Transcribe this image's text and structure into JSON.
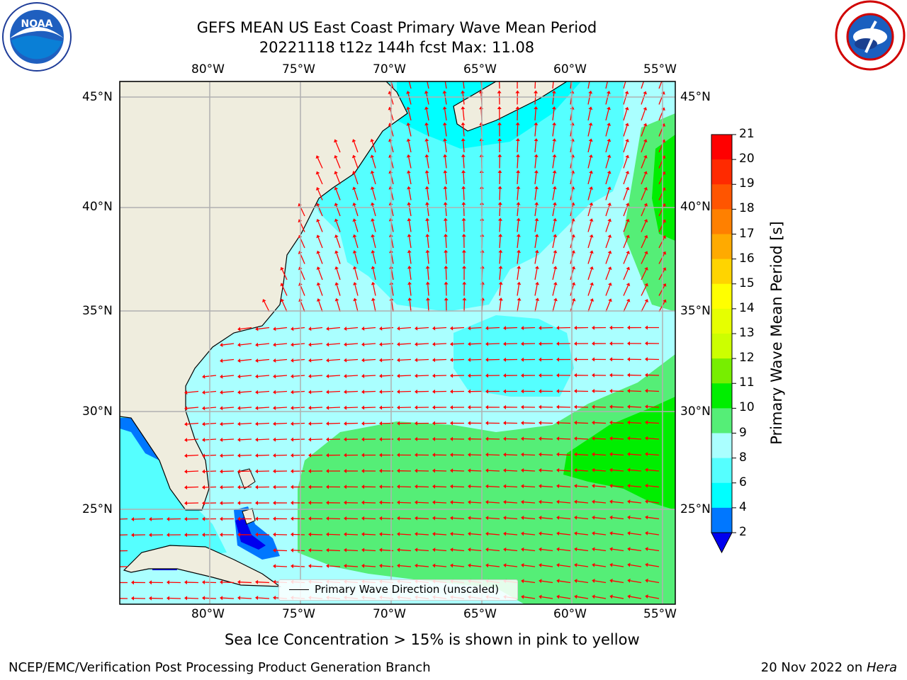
{
  "header": {
    "title_line1": "GEFS MEAN US East Coast Primary Wave Mean Period",
    "title_line2": "20221118 t12z 144h fcst   Max: 11.08"
  },
  "logos": {
    "left": {
      "name": "noaa-logo",
      "text": "NOAA"
    },
    "right": {
      "name": "nws-logo-icon"
    }
  },
  "map": {
    "lon_ticks_top": [
      "80°W",
      "75°W",
      "70°W",
      "65°W",
      "60°W",
      "55°W"
    ],
    "lon_ticks_bottom": [
      "80°W",
      "75°W",
      "70°W",
      "65°W",
      "60°W",
      "55°W"
    ],
    "lat_ticks_left": [
      "45°N",
      "40°N",
      "35°N",
      "30°N",
      "25°N"
    ],
    "lat_ticks_right": [
      "45°N",
      "40°N",
      "35°N",
      "30°N",
      "25°N"
    ],
    "legend": "Primary Wave Direction (unscaled)",
    "colors": {
      "land": "#efedde",
      "arrow": "#ff0000",
      "grid": "#b0b0b0"
    }
  },
  "colorbar": {
    "label": "Primary Wave Mean Period [s]",
    "ticks": [
      "21",
      "20",
      "19",
      "18",
      "17",
      "16",
      "15",
      "14",
      "13",
      "12",
      "11",
      "10",
      "9",
      "8",
      "6",
      "4",
      "2"
    ],
    "colors": [
      "#ff0000",
      "#ff2a00",
      "#ff5500",
      "#ff8000",
      "#ffaa00",
      "#ffd400",
      "#ffff00",
      "#e6ff00",
      "#ccff00",
      "#77ee00",
      "#00ee00",
      "#55ee77",
      "#aaffff",
      "#55ffff",
      "#00ffff",
      "#0077ff",
      "#0000ee"
    ]
  },
  "footer": {
    "sea_ice_note": "Sea Ice Concentration > 15% is shown in pink to yellow",
    "credit": "NCEP/EMC/Verification Post Processing Product Generation Branch",
    "date": "20 Nov 2022 on ",
    "machine": "Hera"
  }
}
